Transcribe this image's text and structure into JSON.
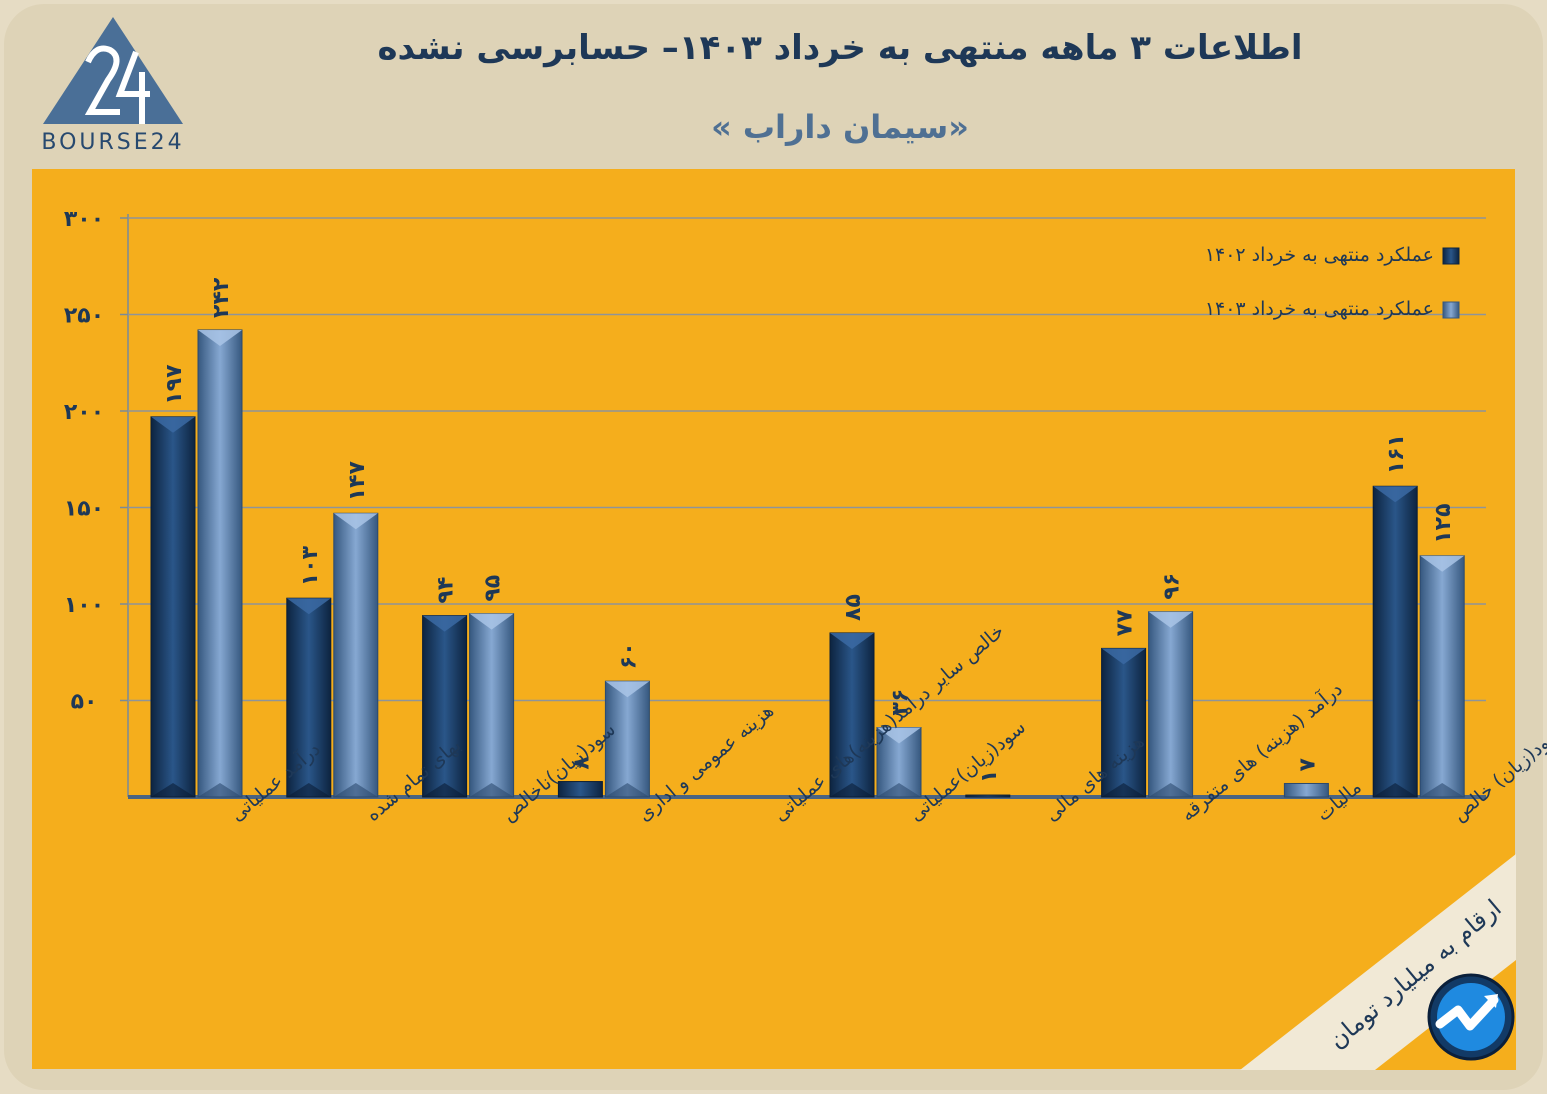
{
  "header": {
    "title": "اطلاعات ۳ ماهه منتهی به خرداد ۱۴۰۳– حسابرسی نشده",
    "subtitle": "«سیمان داراب »",
    "logo_text": "BOURSE24"
  },
  "footer": {
    "unit_note": "ارقام به میلیارد تومان"
  },
  "colors": {
    "series_1402": "#173a63",
    "series_1403": "#557aa8",
    "panel": "#f5ae1c",
    "text": "#1e3857"
  },
  "chart_data": {
    "type": "bar",
    "categories": [
      "درآمد عملیاتی",
      "بهای تمام شده",
      "سود(زیان)ناخالص",
      "هزینه عمومی و اداری",
      "خالص سایر درامد(هزینه)های عملیاتی",
      "سود(زیان)عملیاتی",
      "هزینه های مالی",
      "درآمد (هزینه) های متفرقه",
      "مالیات",
      "سود(زیان) خالص"
    ],
    "series": [
      {
        "name": "عملکرد منتهی به خرداد ۱۴۰۲",
        "values": [
          197,
          103,
          94,
          8,
          0,
          85,
          1,
          77,
          0,
          161
        ],
        "labels": [
          "۱۹۷",
          "۱۰۳",
          "۹۴",
          "۸",
          "",
          "۸۵",
          "۱",
          "۷۷",
          "",
          "۱۶۱"
        ]
      },
      {
        "name": "عملکرد منتهی به خرداد ۱۴۰۳",
        "values": [
          242,
          147,
          95,
          60,
          0,
          36,
          0,
          96,
          7,
          125
        ],
        "labels": [
          "۲۴۲",
          "۱۴۷",
          "۹۵",
          "۶۰",
          "",
          "۳۶",
          "",
          "۹۶",
          "۷",
          "۱۲۵"
        ]
      }
    ],
    "yticks": [
      "۵۰",
      "۱۰۰",
      "۱۵۰",
      "۲۰۰",
      "۲۵۰",
      "۳۰۰"
    ],
    "ylim": [
      0,
      300
    ],
    "grid": true,
    "legend_position": "top-right"
  }
}
